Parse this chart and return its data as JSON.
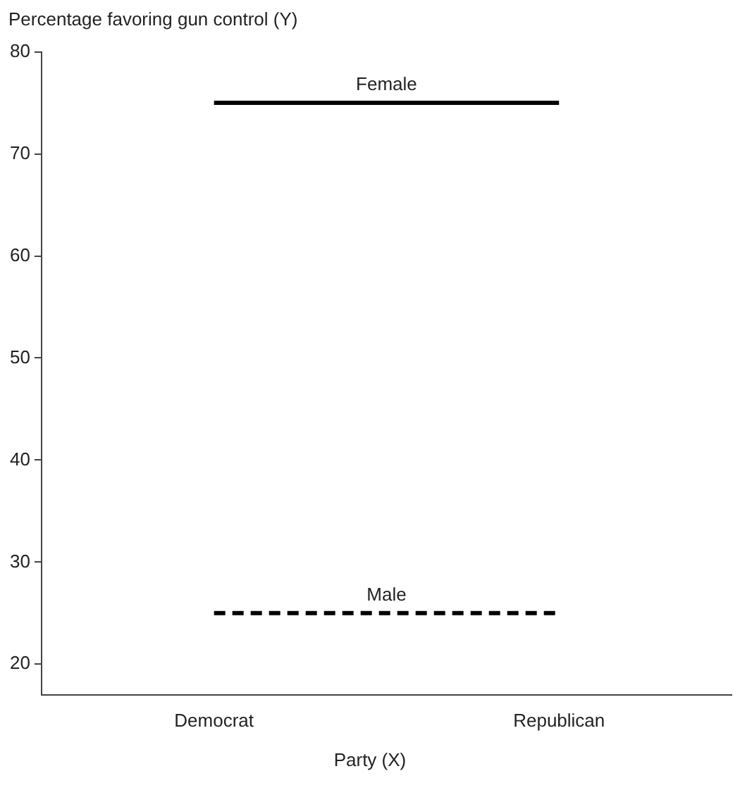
{
  "chart_data": {
    "type": "line",
    "ylabel": "Percentage favoring gun control (Y)",
    "xlabel": "Party (X)",
    "categories": [
      "Democrat",
      "Republican"
    ],
    "series": [
      {
        "name": "Female",
        "color": "#000000",
        "values": [
          75,
          75
        ],
        "line_style": "solid"
      },
      {
        "name": "Male",
        "color": "#000000",
        "values": [
          25,
          25
        ],
        "line_style": "dashed"
      }
    ],
    "ylim": [
      17,
      80
    ],
    "yticks": [
      20,
      30,
      40,
      50,
      60,
      70,
      80
    ],
    "grid": false,
    "legend": false,
    "marker": "none"
  }
}
